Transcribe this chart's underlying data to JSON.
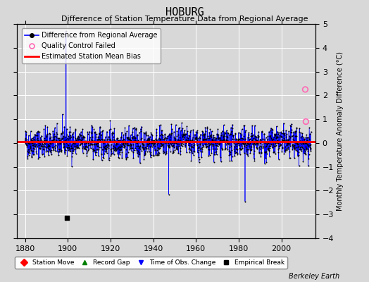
{
  "title": "HOBURG",
  "subtitle": "Difference of Station Temperature Data from Regional Average",
  "ylabel_right": "Monthly Temperature Anomaly Difference (°C)",
  "credit": "Berkeley Earth",
  "xlim": [
    1876,
    2016
  ],
  "ylim": [
    -4,
    5
  ],
  "yticks": [
    -4,
    -3,
    -2,
    -1,
    0,
    1,
    2,
    3,
    4,
    5
  ],
  "xticks": [
    1880,
    1900,
    1920,
    1940,
    1960,
    1980,
    2000
  ],
  "mean_bias": 0.05,
  "bias_color": "#ff0000",
  "line_color": "#0000ff",
  "dot_color": "#000000",
  "qc_color": "#ff69b4",
  "background_color": "#d8d8d8",
  "plot_bg_color": "#d8d8d8",
  "grid_color": "#ffffff",
  "qc_fail_points": [
    [
      2011.2,
      2.25
    ],
    [
      2011.5,
      0.9
    ]
  ],
  "empirical_break_x": 1899.5,
  "empirical_break_y": -3.15,
  "seed": 42,
  "title_fontsize": 11,
  "subtitle_fontsize": 8,
  "tick_fontsize": 8,
  "ylabel_fontsize": 7
}
